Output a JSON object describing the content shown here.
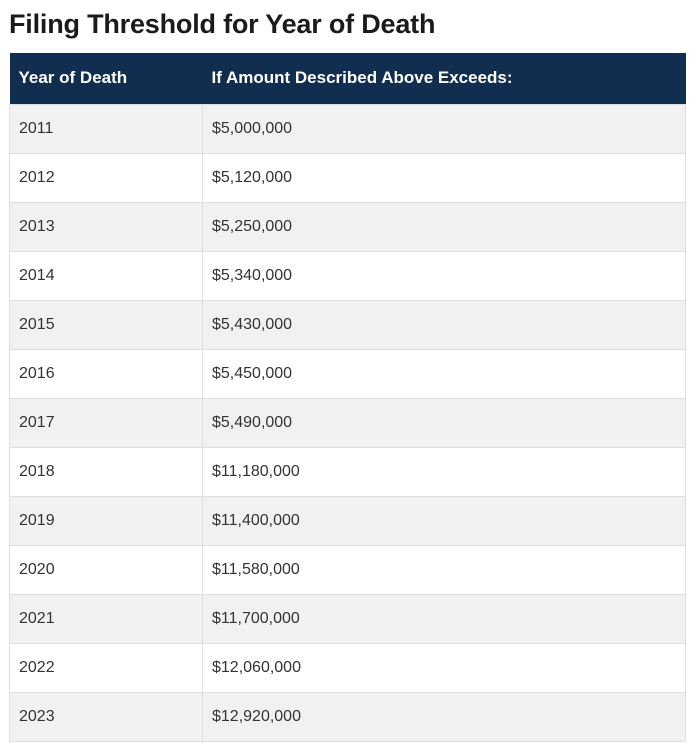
{
  "page": {
    "title": "Filing Threshold for Year of Death"
  },
  "table": {
    "headers": [
      "Year of Death",
      "If Amount Described Above Exceeds:"
    ],
    "rows": [
      {
        "year": "2011",
        "amount": "$5,000,000"
      },
      {
        "year": "2012",
        "amount": "$5,120,000"
      },
      {
        "year": "2013",
        "amount": "$5,250,000"
      },
      {
        "year": "2014",
        "amount": "$5,340,000"
      },
      {
        "year": "2015",
        "amount": "$5,430,000"
      },
      {
        "year": "2016",
        "amount": "$5,450,000"
      },
      {
        "year": "2017",
        "amount": "$5,490,000"
      },
      {
        "year": "2018",
        "amount": "$11,180,000"
      },
      {
        "year": "2019",
        "amount": "$11,400,000"
      },
      {
        "year": "2020",
        "amount": "$11,580,000"
      },
      {
        "year": "2021",
        "amount": "$11,700,000"
      },
      {
        "year": "2022",
        "amount": "$12,060,000"
      },
      {
        "year": "2023",
        "amount": "$12,920,000"
      }
    ]
  },
  "colors": {
    "header_background": "#112e51",
    "header_text": "#ffffff",
    "stripe_background": "#f1f1f1",
    "body_text": "#333333"
  }
}
